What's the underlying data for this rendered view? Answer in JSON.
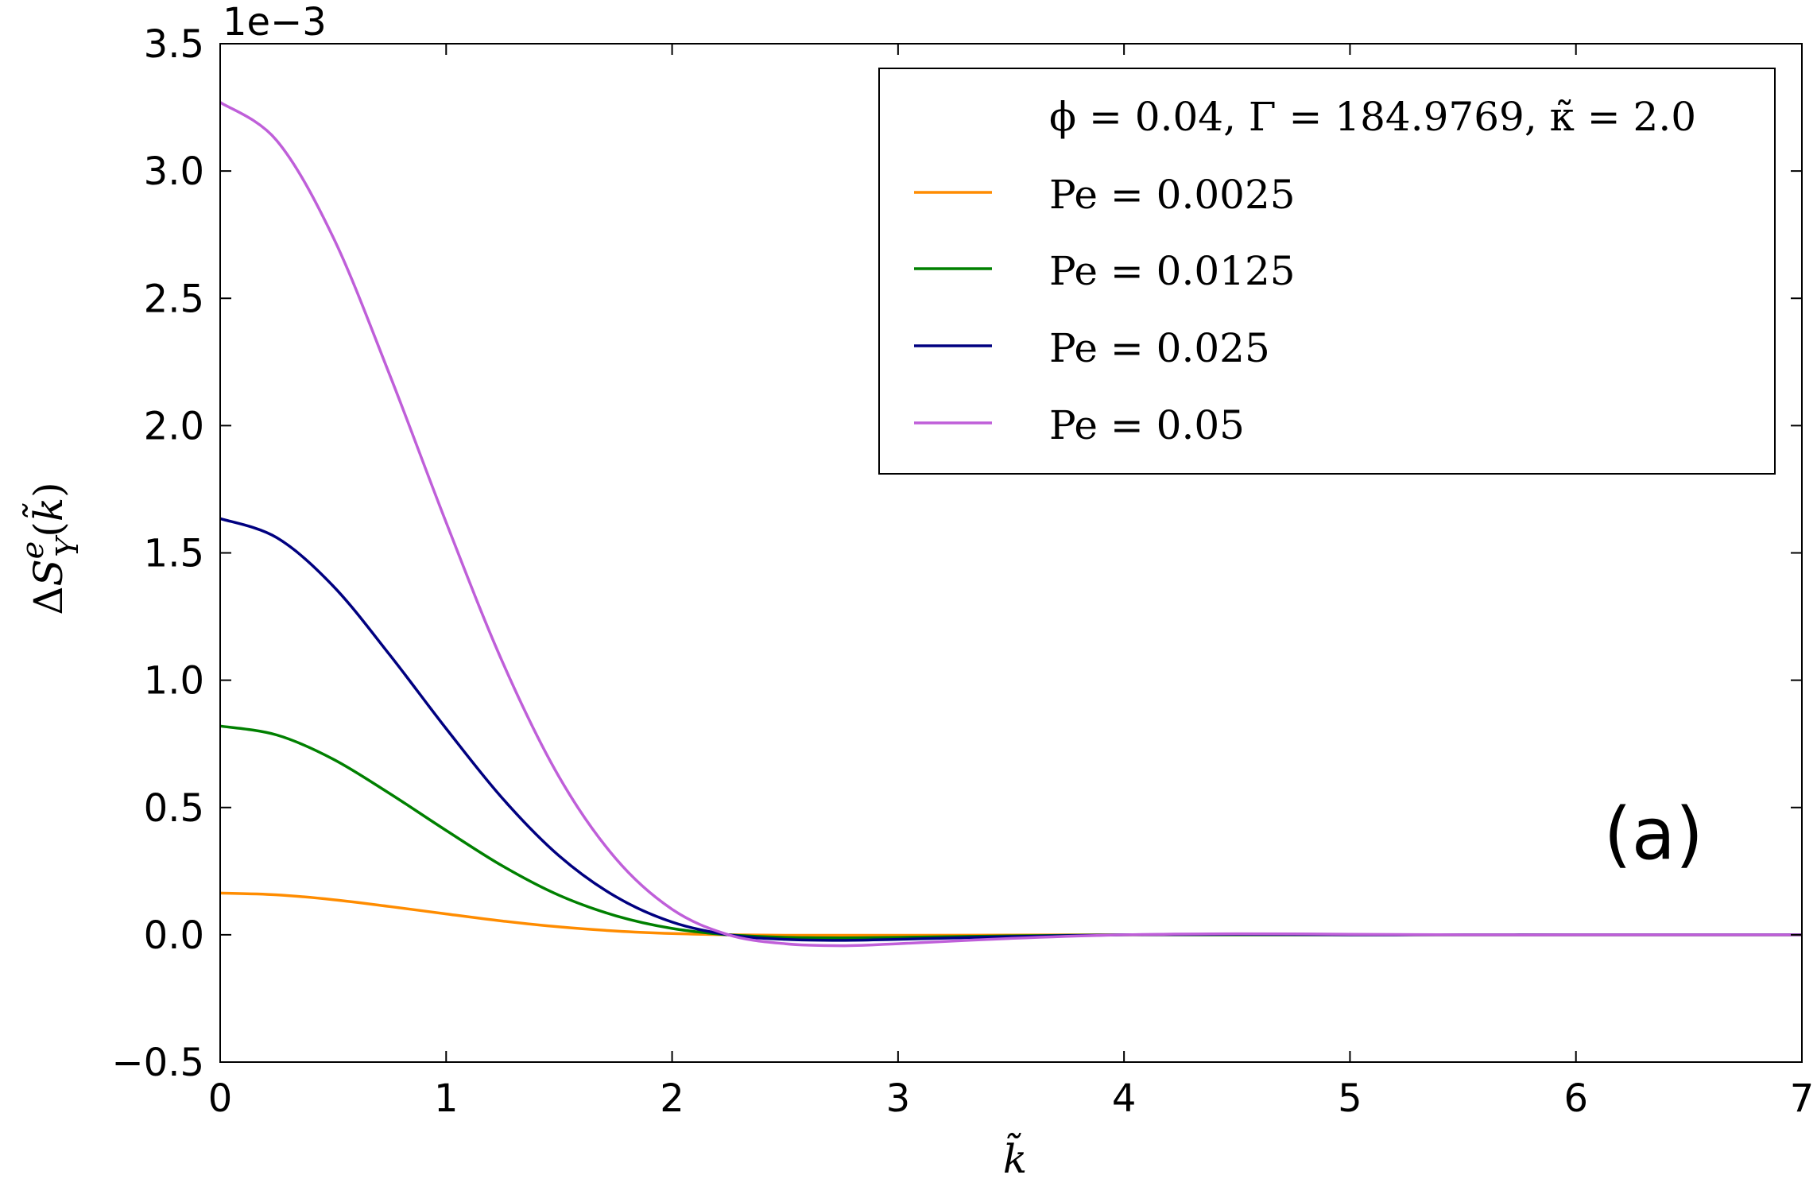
{
  "chart_data": {
    "type": "line",
    "offset_label": "1e−3",
    "panel_label": "(a)",
    "xlabel": "k̃",
    "ylabel_parts": {
      "delta": "Δ",
      "S": "S",
      "sup": "e",
      "sub": "Y",
      "open": "(",
      "k": "k̃",
      "close": ")"
    },
    "xlim": [
      0,
      7
    ],
    "ylim": [
      -0.5,
      3.5
    ],
    "x_ticks": [
      0,
      1,
      2,
      3,
      4,
      5,
      6,
      7
    ],
    "x_tick_labels": [
      "0",
      "1",
      "2",
      "3",
      "4",
      "5",
      "6",
      "7"
    ],
    "y_ticks": [
      -0.5,
      0.0,
      0.5,
      1.0,
      1.5,
      2.0,
      2.5,
      3.0,
      3.5
    ],
    "y_tick_labels": [
      "−0.5",
      "0.0",
      "0.5",
      "1.0",
      "1.5",
      "2.0",
      "2.5",
      "3.0",
      "3.5"
    ],
    "legend": {
      "title": "ϕ = 0.04, Γ = 184.9769, κ̃ = 2.0",
      "placement": "top-right"
    },
    "x": [
      0.0,
      0.25,
      0.5,
      0.75,
      1.0,
      1.25,
      1.5,
      1.75,
      2.0,
      2.25,
      2.5,
      2.75,
      3.0,
      3.5,
      4.0,
      4.5,
      5.0,
      5.5,
      6.0,
      6.5,
      7.0
    ],
    "series": [
      {
        "name": "Pe = 0.0025",
        "color": "#ff8c00",
        "values": [
          0.164,
          0.157,
          0.138,
          0.111,
          0.082,
          0.054,
          0.031,
          0.015,
          0.005,
          0.0,
          -0.002,
          -0.002,
          -0.002,
          -0.001,
          0.0,
          0.0,
          0.0,
          0.0,
          0.0,
          0.0,
          0.0
        ]
      },
      {
        "name": "Pe = 0.0125",
        "color": "#008000",
        "values": [
          0.82,
          0.785,
          0.69,
          0.555,
          0.41,
          0.27,
          0.155,
          0.075,
          0.025,
          0.0,
          -0.01,
          -0.012,
          -0.01,
          -0.004,
          0.0,
          0.0,
          0.0,
          0.0,
          0.0,
          0.0,
          0.0
        ]
      },
      {
        "name": "Pe = 0.025",
        "color": "#000080",
        "values": [
          1.635,
          1.56,
          1.37,
          1.1,
          0.81,
          0.535,
          0.31,
          0.15,
          0.05,
          0.0,
          -0.018,
          -0.022,
          -0.018,
          -0.007,
          0.0,
          0.002,
          0.0,
          0.0,
          0.0,
          0.0,
          0.0
        ]
      },
      {
        "name": "Pe = 0.05",
        "color": "#bf5fd9",
        "values": [
          3.27,
          3.12,
          2.74,
          2.2,
          1.62,
          1.07,
          0.62,
          0.3,
          0.1,
          0.0,
          -0.035,
          -0.043,
          -0.035,
          -0.014,
          0.0,
          0.004,
          0.002,
          0.0,
          0.0,
          0.0,
          0.0
        ]
      }
    ]
  }
}
